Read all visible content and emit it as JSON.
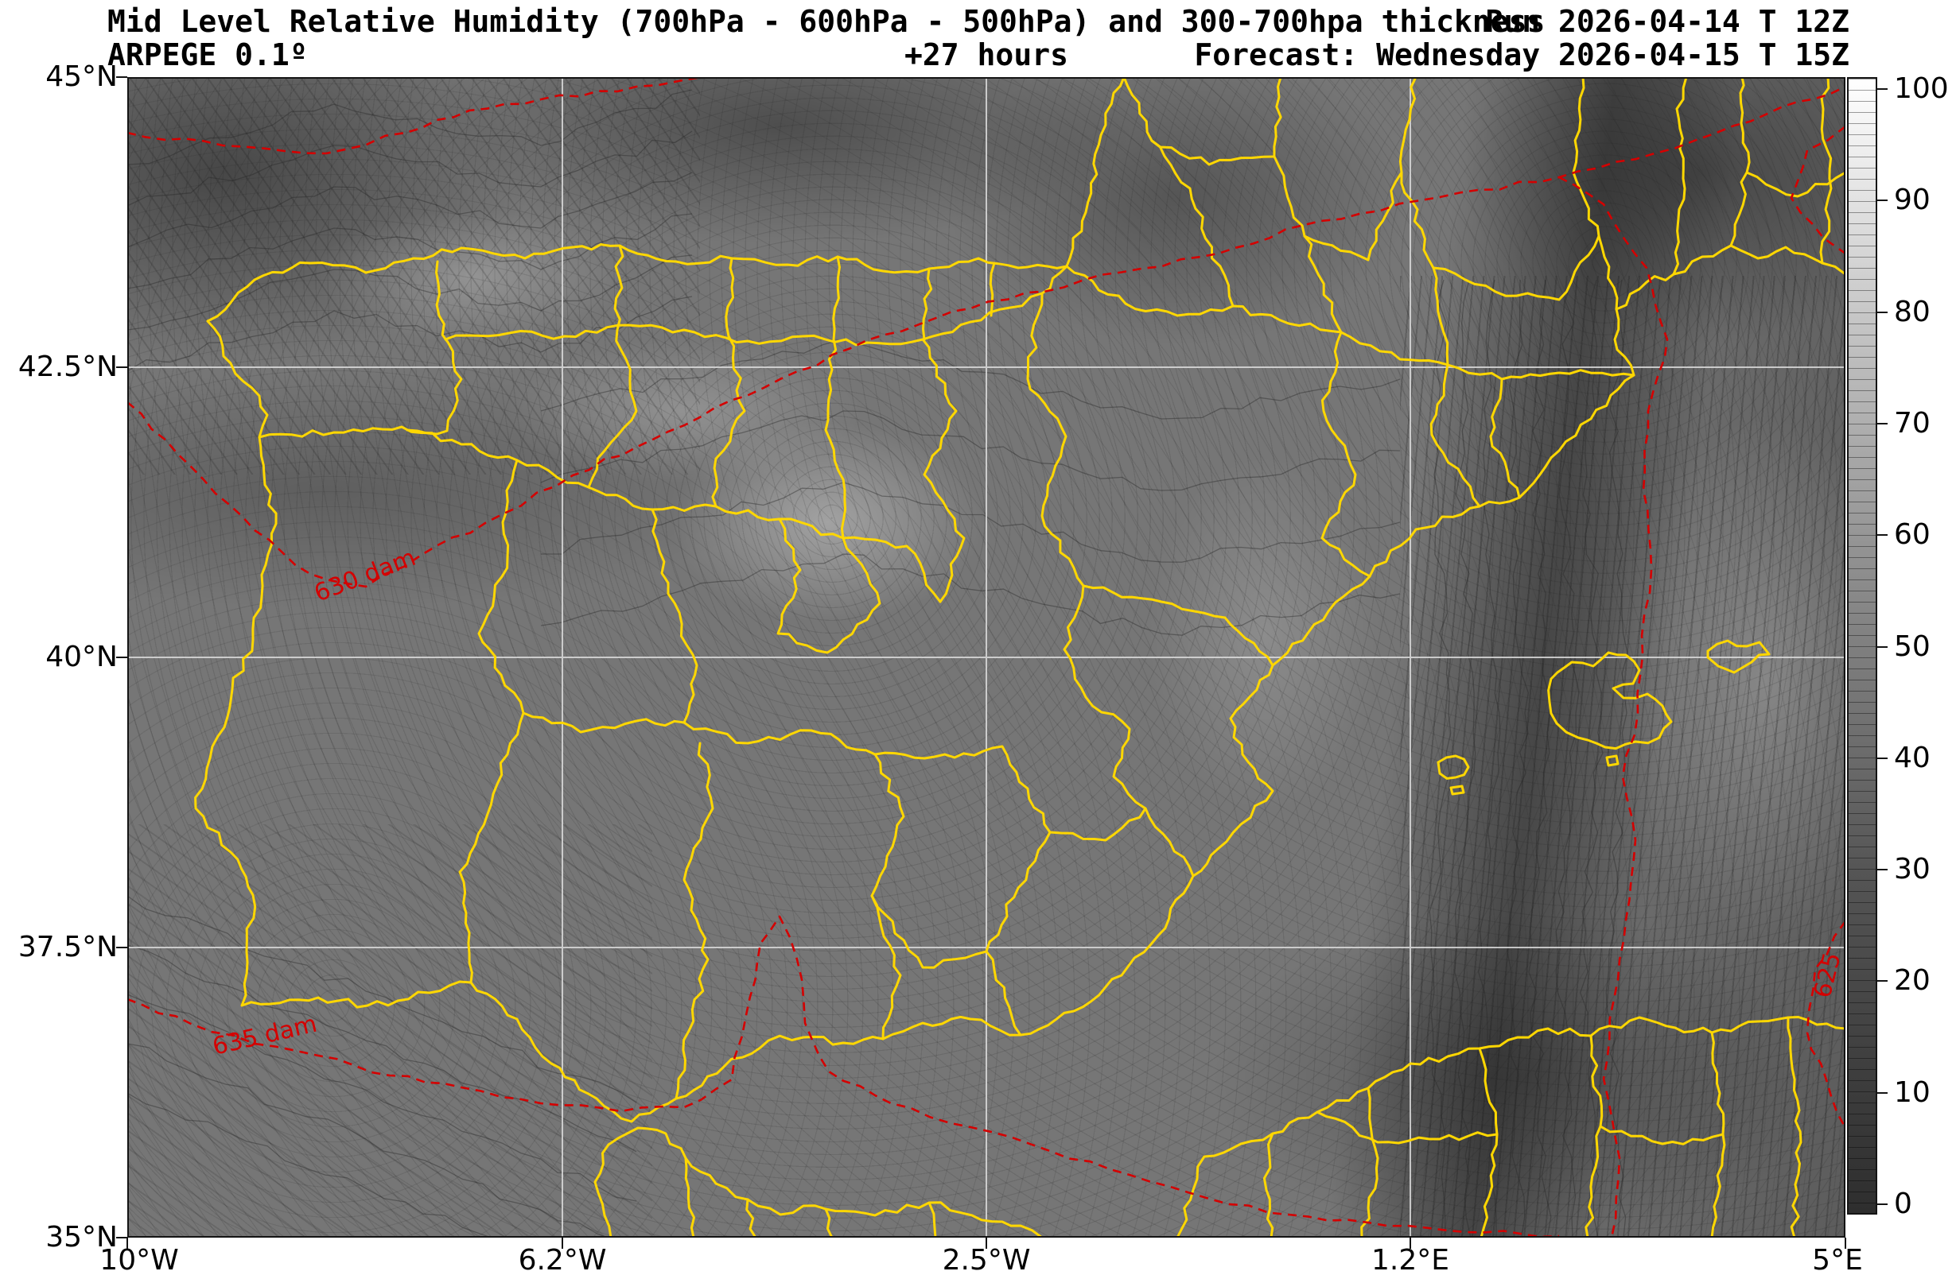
{
  "header": {
    "title": "Mid Level Relative Humidity (700hPa - 600hPa - 500hPa) and 300-700hpa thickness",
    "run": "Run 2026-04-14 T 12Z",
    "model": "ARPEGE 0.1º",
    "lead_time": "+27 hours",
    "forecast": "Forecast: Wednesday 2026-04-15 T 15Z"
  },
  "axes": {
    "y_ticks": [
      "45°N",
      "42.5°N",
      "40°N",
      "37.5°N",
      "35°N"
    ],
    "x_ticks": [
      "10°W",
      "6.2°W",
      "2.5°W",
      "1.2°E",
      "5°E"
    ]
  },
  "colorbar": {
    "ticks": [
      "100",
      "90",
      "80",
      "70",
      "60",
      "50",
      "40",
      "30",
      "20",
      "10",
      "0"
    ]
  },
  "map": {
    "contour_labels": [
      {
        "text": "630 dam"
      },
      {
        "text": "635 dam"
      },
      {
        "text": "625"
      }
    ]
  },
  "colors": {
    "border_yellow": "#ffd700",
    "contour_red": "#d40000",
    "shade_base_gray": "#767676"
  },
  "chart_data": {
    "type": "heatmap",
    "title": "Mid Level Relative Humidity (700hPa - 600hPa - 500hPa) and 300-700hpa thickness",
    "subtitle_left": "ARPEGE 0.1º",
    "subtitle_center": "+27 hours",
    "subtitle_right": "Forecast: Wednesday 2026-04-15 T 15Z",
    "run_label": "Run 2026-04-14 T 12Z",
    "colorbar_range": [
      0,
      100
    ],
    "colorbar_ticks": [
      0,
      10,
      20,
      30,
      40,
      50,
      60,
      70,
      80,
      90,
      100
    ],
    "x_ticks": [
      "10°W",
      "6.2°W",
      "2.5°W",
      "1.2°E",
      "5°E"
    ],
    "y_ticks": [
      "45°N",
      "42.5°N",
      "40°N",
      "37.5°N",
      "35°N"
    ],
    "thickness_contours_dam": [
      625,
      630,
      635
    ],
    "legend_position": "right",
    "grid": true
  }
}
